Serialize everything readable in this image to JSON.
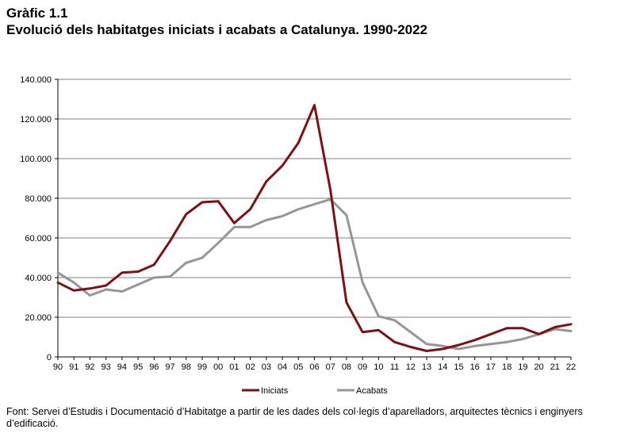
{
  "header": {
    "figure_number": "Gràfic 1.1",
    "title": "Evolució dels habitatges iniciats i acabats a Catalunya. 1990-2022"
  },
  "source_note": "Font: Servei d’Estudis i Documentació d’Habitatge a partir de les dades dels col·legis d’aparelladors, arquitectes tècnics i enginyers d’edificació.",
  "chart_data": {
    "type": "line",
    "title": "Evolució dels habitatges iniciats i acabats a Catalunya. 1990-2022",
    "xlabel": "",
    "ylabel": "",
    "categories": [
      "90",
      "91",
      "92",
      "93",
      "94",
      "95",
      "96",
      "97",
      "98",
      "99",
      "00",
      "01",
      "02",
      "03",
      "04",
      "05",
      "06",
      "07",
      "08",
      "09",
      "10",
      "11",
      "12",
      "13",
      "14",
      "15",
      "16",
      "17",
      "18",
      "19",
      "20",
      "21",
      "22"
    ],
    "ylim": [
      0,
      140000
    ],
    "yticks": [
      0,
      20000,
      40000,
      60000,
      80000,
      100000,
      120000,
      140000
    ],
    "ytick_labels": [
      "0",
      "20.000",
      "40.000",
      "60.000",
      "80.000",
      "100.000",
      "120.000",
      "140.000"
    ],
    "grid": "horizontal",
    "legend_position": "bottom",
    "series": [
      {
        "name": "Iniciats",
        "color": "#7f0f15",
        "values": [
          37500,
          33500,
          34500,
          36000,
          42500,
          43000,
          46500,
          58500,
          72000,
          78000,
          78500,
          67500,
          74500,
          88500,
          96500,
          108000,
          127000,
          84000,
          27500,
          12500,
          13500,
          7500,
          5000,
          3000,
          4000,
          6000,
          8500,
          11500,
          14500,
          14500,
          11500,
          15000,
          16500
        ]
      },
      {
        "name": "Acabats",
        "color": "#969696",
        "values": [
          42500,
          37500,
          31000,
          34000,
          33000,
          36500,
          40000,
          40500,
          47500,
          50000,
          57500,
          65500,
          65500,
          69000,
          71000,
          74500,
          77000,
          79500,
          71500,
          37500,
          20500,
          18500,
          12500,
          6500,
          5500,
          4000,
          5500,
          6500,
          7500,
          9000,
          11500,
          14000,
          13000
        ]
      }
    ]
  }
}
